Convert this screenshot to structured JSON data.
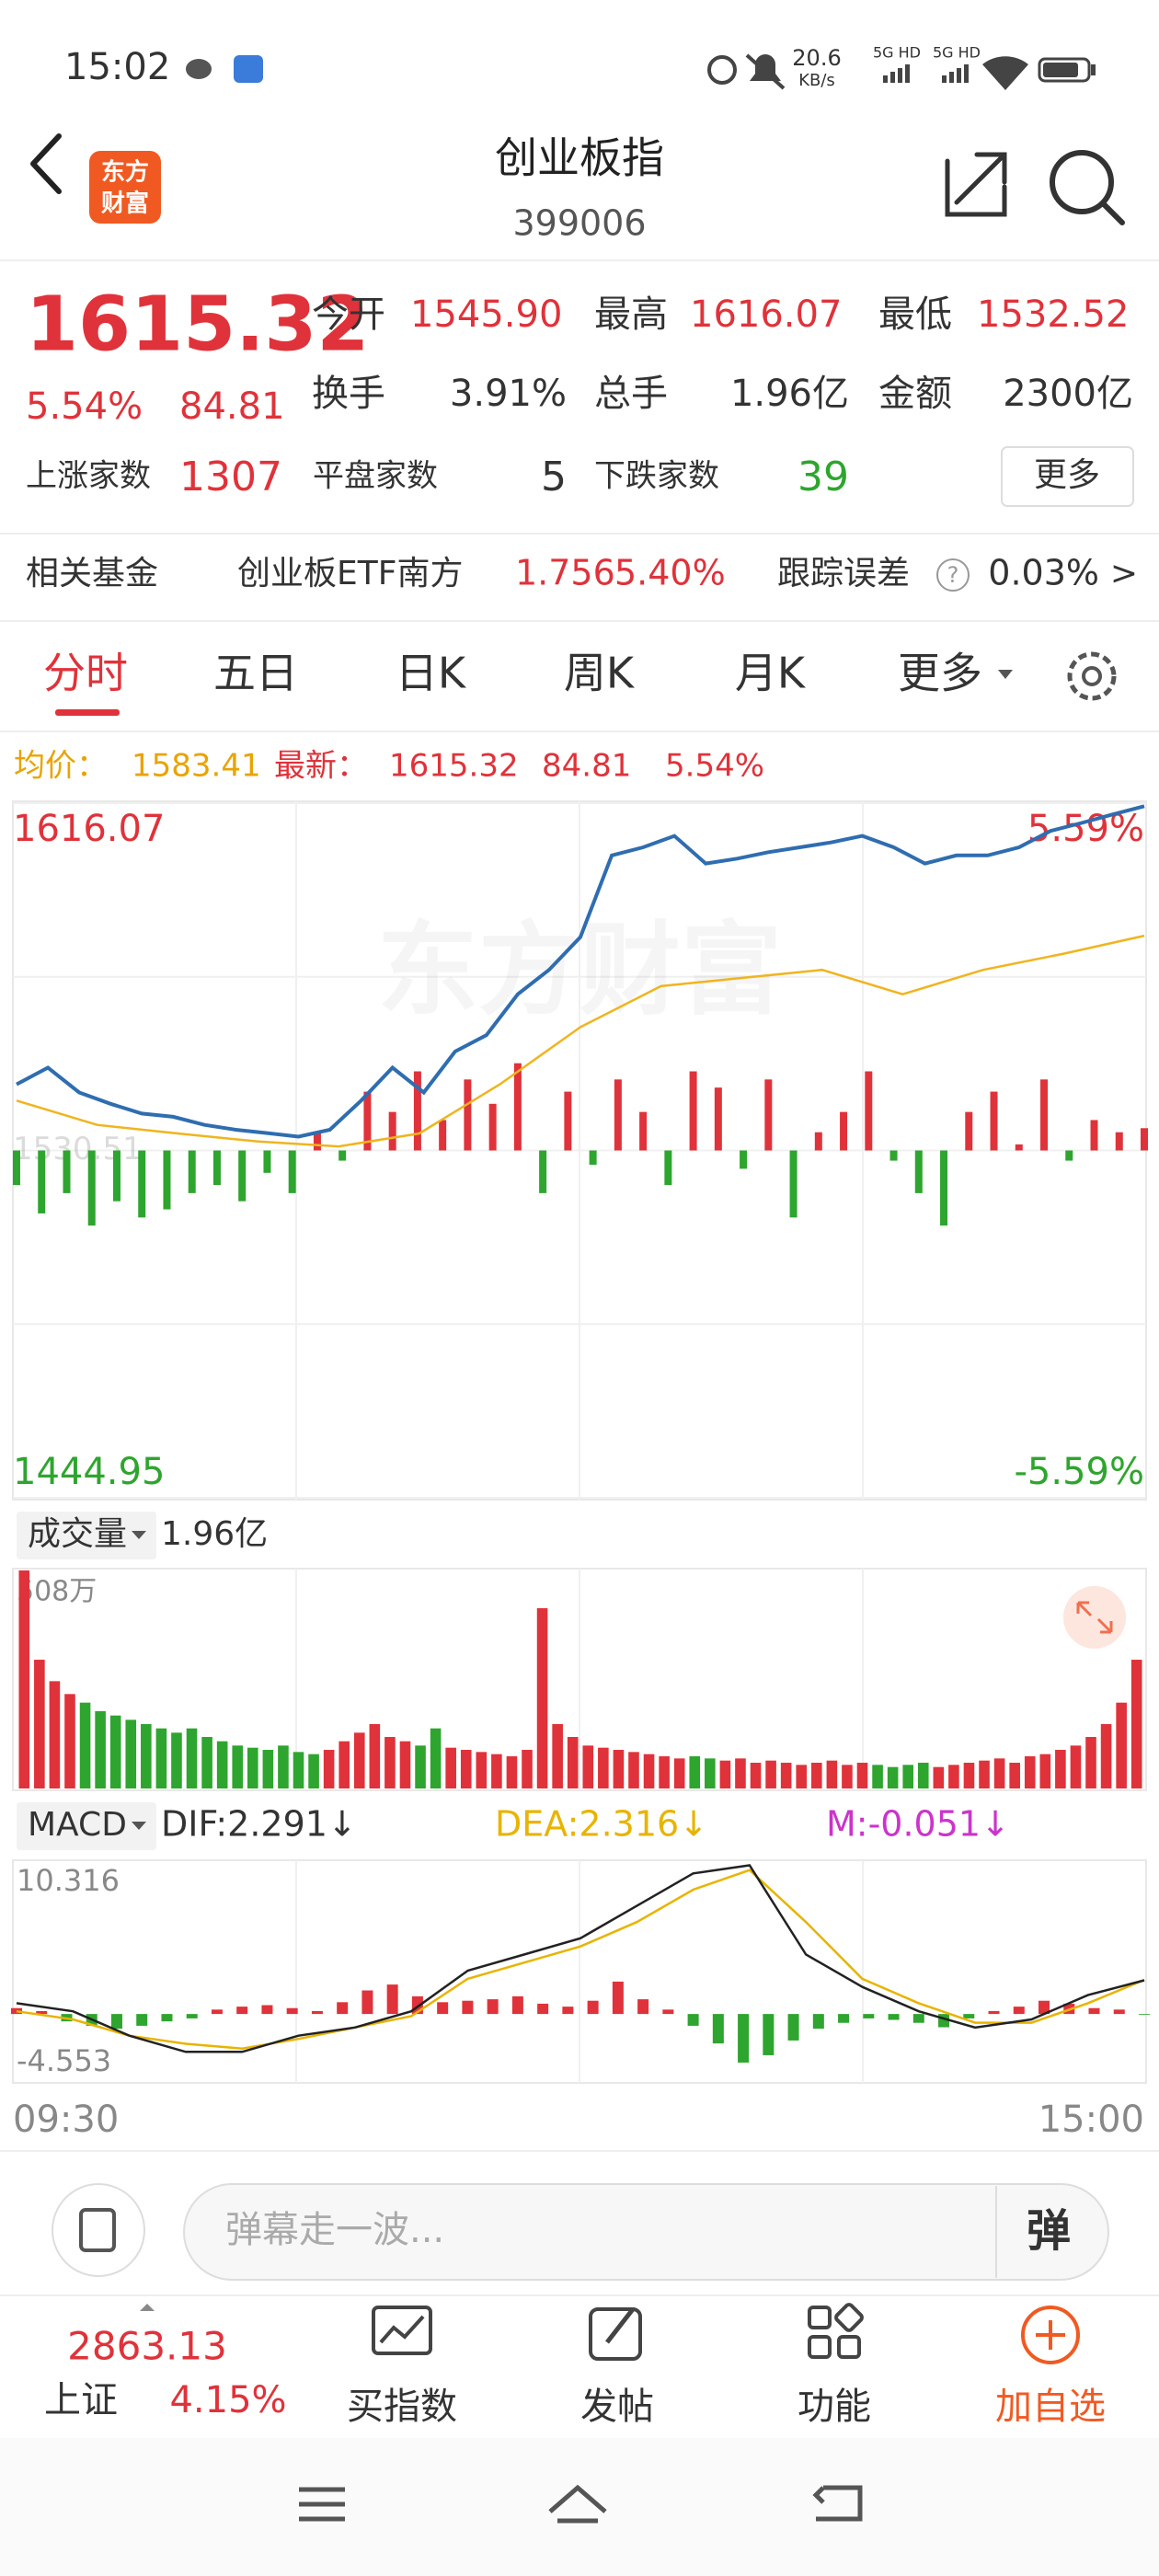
{
  "status": {
    "time": "15:02",
    "speed": "20.6",
    "speed_unit": "KB/s",
    "net1": "5G HD",
    "net2": "5G HD"
  },
  "header": {
    "logo_top": "东方",
    "logo_bottom": "财富",
    "title": "创业板指",
    "code": "399006"
  },
  "quote": {
    "price": "1615.32",
    "pct": "5.54%",
    "change": "84.81",
    "stats": [
      {
        "label": "今开",
        "value": "1545.90"
      },
      {
        "label": "最高",
        "value": "1616.07"
      },
      {
        "label": "最低",
        "value": "1532.52"
      },
      {
        "label": "换手",
        "value": "3.91%"
      },
      {
        "label": "总手",
        "value": "1.96亿"
      },
      {
        "label": "金额",
        "value": "2300亿"
      }
    ],
    "breadth": [
      {
        "label": "上涨家数",
        "value": "1307"
      },
      {
        "label": "平盘家数",
        "value": "5"
      },
      {
        "label": "下跌家数",
        "value": "39"
      }
    ],
    "more": "更多"
  },
  "fund": {
    "label": "相关基金",
    "name": "创业板ETF南方",
    "price": "1.756",
    "pct": "5.40%",
    "track_label": "跟踪误差",
    "help": "?",
    "track": "0.03%",
    "arrow": ">"
  },
  "tabs": [
    "分时",
    "五日",
    "日K",
    "周K",
    "月K",
    "更多"
  ],
  "info": {
    "avg_label": "均价：",
    "avg": "1583.41",
    "last_label": "最新：",
    "last": "1615.32",
    "change": "84.81",
    "pct": "5.54%"
  },
  "chart_data": [
    {
      "type": "line",
      "watermark": "东方财富",
      "ylim": [
        1444.95,
        1616.07
      ],
      "yticks": [
        1444.95,
        1530.51,
        1616.07
      ],
      "y2lim": [
        -5.59,
        5.59
      ],
      "y2ticks": [
        {
          "value": -5.59,
          "label": "-5.59%"
        },
        {
          "value": 5.59,
          "label": "5.59%"
        }
      ],
      "grid": true,
      "series": [
        {
          "color": "#2f6db0",
          "values": [
            1546.8,
            1550.9,
            1544.8,
            1542.0,
            1539.6,
            1538.8,
            1536.8,
            1535.6,
            1534.8,
            1533.9,
            1535.6,
            1542.8,
            1550.9,
            1544.8,
            1554.9,
            1558.9,
            1569.0,
            1575.0,
            1583.1,
            1603.2,
            1605.2,
            1608.0,
            1601.2,
            1602.4,
            1604.0,
            1605.2,
            1606.4,
            1608.0,
            1605.2,
            1601.2,
            1603.2,
            1603.2,
            1605.2,
            1609.2,
            1611.2,
            1613.3,
            1615.32
          ]
        },
        {
          "color": "#f0b41e",
          "values": [
            1542.8,
            1536.8,
            1534.7,
            1532.7,
            1531.5,
            1534.7,
            1546.8,
            1560.9,
            1571.0,
            1573.0,
            1575.0,
            1569.0,
            1575.0,
            1579.0,
            1583.41
          ]
        }
      ],
      "flow": {
        "up_color": "#e0323a",
        "down_color": "#2ea52e",
        "values": [
          1522,
          1515,
          1520,
          1512,
          1518,
          1514,
          1516,
          1520,
          1522,
          1518,
          1525,
          1520,
          1535,
          1528,
          1545,
          1540,
          1550,
          1538,
          1548,
          1542,
          1552,
          1520,
          1545,
          1527,
          1548,
          1540,
          1522,
          1550,
          1546,
          1526,
          1548,
          1514,
          1535,
          1540,
          1550,
          1528,
          1520,
          1512,
          1540,
          1545,
          1532,
          1548,
          1528,
          1538,
          1535,
          1536
        ]
      }
    },
    {
      "type": "bar",
      "title": "成交量",
      "total": "1.96亿",
      "up_color": "#e0323a",
      "down_color": "#2ea52e",
      "ylim": [
        0,
        508
      ],
      "yticks": [
        {
          "value": 508,
          "label": "508万"
        }
      ],
      "values": [
        508,
        300,
        250,
        220,
        200,
        180,
        170,
        160,
        150,
        140,
        130,
        140,
        120,
        110,
        100,
        95,
        90,
        100,
        85,
        80,
        90,
        110,
        130,
        150,
        120,
        110,
        100,
        140,
        95,
        90,
        85,
        80,
        75,
        90,
        420,
        150,
        120,
        100,
        95,
        90,
        85,
        80,
        75,
        70,
        75,
        70,
        65,
        70,
        60,
        65,
        60,
        55,
        60,
        65,
        55,
        60,
        55,
        50,
        55,
        60,
        50,
        55,
        60,
        65,
        70,
        60,
        75,
        80,
        90,
        100,
        120,
        150,
        200,
        300
      ]
    },
    {
      "type": "macd",
      "title": "MACD",
      "ylim": [
        -4.553,
        10.316
      ],
      "yticks": [
        -4.553,
        10.316
      ],
      "x_labels": [
        "09:30",
        "15:00"
      ],
      "series": [
        {
          "name": "DIF:2.291↓",
          "color": "#222222",
          "values": [
            0.73,
            0.18,
            -1.47,
            -2.57,
            -2.57,
            -1.47,
            -0.92,
            0.18,
            2.94,
            4.04,
            5.14,
            7.34,
            9.55,
            10.1,
            4.04,
            1.84,
            0.18,
            -0.92,
            -0.37,
            1.28,
            2.291
          ]
        },
        {
          "name": "DEA:2.316↓",
          "color": "#e8b400",
          "values": [
            0.18,
            -0.37,
            -1.47,
            -2.02,
            -2.35,
            -1.69,
            -0.92,
            -0.15,
            2.39,
            3.49,
            4.59,
            6.24,
            8.44,
            9.77,
            6.24,
            2.39,
            0.73,
            -0.59,
            -0.59,
            0.73,
            2.316
          ]
        },
        {
          "name": "M:-0.051↓",
          "color": "#cc33cc",
          "up_color": "#e0323a",
          "down_color": "#2ea52e",
          "values": [
            0.4,
            0.2,
            -0.5,
            -0.8,
            -1.0,
            -0.8,
            -0.5,
            -0.3,
            0.3,
            0.5,
            0.6,
            0.4,
            0.2,
            0.8,
            1.6,
            2.0,
            1.2,
            0.8,
            0.9,
            1.0,
            1.2,
            0.7,
            0.5,
            0.9,
            2.2,
            1.0,
            0.3,
            -0.8,
            -2.0,
            -3.3,
            -2.8,
            -1.8,
            -1.0,
            -0.6,
            -0.3,
            -0.4,
            -0.6,
            -0.9,
            -0.3,
            0.2,
            0.5,
            0.9,
            0.7,
            0.4,
            0.3,
            -0.051
          ]
        }
      ]
    }
  ],
  "comment": {
    "placeholder": "弹幕走一波...",
    "danmaku": "弹"
  },
  "bottom": {
    "index_value": "2863.13",
    "index_name": "上证",
    "index_pct": "4.15%",
    "items": [
      "买指数",
      "发帖",
      "功能",
      "加自选"
    ]
  }
}
